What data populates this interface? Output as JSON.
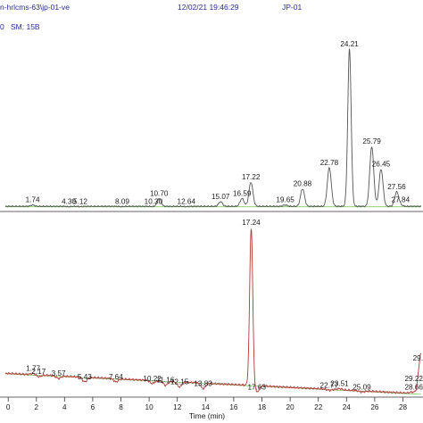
{
  "header": {
    "path": "n-hrlcms-63\\jp-01-ve",
    "datetime": "12/02/21 19:46:29",
    "sample": "JP-01",
    "left_fragment": "0",
    "sm": "SM:  15B"
  },
  "colors": {
    "top_trace": "#555555",
    "bottom_trace": "#b03838",
    "baseline": "#6fbf4a",
    "axis": "#333333",
    "header_text": "#2a2a9a"
  },
  "chart_data": [
    {
      "type": "line",
      "title": "",
      "xlabel": "",
      "ylabel": "",
      "xlim": [
        -0.2,
        29.3
      ],
      "ylim": [
        0,
        100
      ],
      "grid": false,
      "peaks": [
        {
          "x": 1.74,
          "y": 4,
          "label": "1.74"
        },
        {
          "x": 4.3,
          "y": 3,
          "label": "4.30"
        },
        {
          "x": 5.12,
          "y": 3,
          "label": "5.12"
        },
        {
          "x": 8.09,
          "y": 3,
          "label": "8.09"
        },
        {
          "x": 10.3,
          "y": 3,
          "label": "10.30"
        },
        {
          "x": 10.7,
          "y": 8,
          "label": "10.70"
        },
        {
          "x": 12.64,
          "y": 3,
          "label": "12.64"
        },
        {
          "x": 15.07,
          "y": 6,
          "label": "15.07"
        },
        {
          "x": 16.59,
          "y": 8,
          "label": "16.59"
        },
        {
          "x": 17.22,
          "y": 18,
          "label": "17.22"
        },
        {
          "x": 19.65,
          "y": 4,
          "label": "19.65"
        },
        {
          "x": 20.88,
          "y": 14,
          "label": "20.88"
        },
        {
          "x": 22.78,
          "y": 27,
          "label": "22.78"
        },
        {
          "x": 24.21,
          "y": 100,
          "label": "24.21"
        },
        {
          "x": 25.79,
          "y": 40,
          "label": "25.79"
        },
        {
          "x": 26.45,
          "y": 26,
          "label": "26.45"
        },
        {
          "x": 27.56,
          "y": 12,
          "label": "27.56"
        },
        {
          "x": 27.84,
          "y": 4,
          "label": "27.84"
        }
      ]
    },
    {
      "type": "line",
      "title": "",
      "xlabel": "Time (min)",
      "ylabel": "",
      "xlim": [
        -0.2,
        29.3
      ],
      "ylim": [
        0,
        100
      ],
      "xticks": [
        0,
        2,
        4,
        6,
        8,
        10,
        12,
        14,
        16,
        18,
        20,
        22,
        24,
        26,
        28
      ],
      "grid": false,
      "peaks": [
        {
          "x": 1.77,
          "y": 14,
          "label": "1.77"
        },
        {
          "x": 2.17,
          "y": 12,
          "label": "2.17"
        },
        {
          "x": 3.57,
          "y": 11,
          "label": "3.57"
        },
        {
          "x": 5.43,
          "y": 9,
          "label": "5.43"
        },
        {
          "x": 7.64,
          "y": 9,
          "label": "7.64"
        },
        {
          "x": 10.22,
          "y": 8,
          "label": "10.22"
        },
        {
          "x": 11.16,
          "y": 7,
          "label": "11.16"
        },
        {
          "x": 12.15,
          "y": 6,
          "label": "12.15"
        },
        {
          "x": 13.83,
          "y": 5,
          "label": "13.83"
        },
        {
          "x": 17.24,
          "y": 100,
          "label": "17.24"
        },
        {
          "x": 17.63,
          "y": 3,
          "label": "17.63"
        },
        {
          "x": 22.77,
          "y": 4,
          "label": "22.77"
        },
        {
          "x": 23.51,
          "y": 5,
          "label": "23.51"
        },
        {
          "x": 25.09,
          "y": 3,
          "label": "25.09"
        },
        {
          "x": 28.66,
          "y": 3,
          "label": "28.66"
        },
        {
          "x": 29.22,
          "y": 8,
          "label": "29.22"
        },
        {
          "x": 29.3,
          "y": 20,
          "label": "29."
        }
      ]
    }
  ]
}
